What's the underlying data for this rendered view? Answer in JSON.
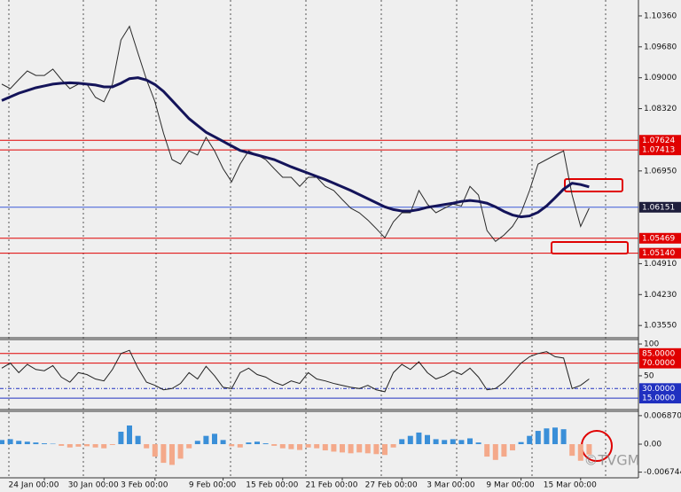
{
  "chart_data": [
    {
      "type": "line",
      "categories": [
        null,
        null,
        null,
        null,
        null,
        "24 Jan 00:00",
        null,
        null,
        null,
        null,
        null,
        null,
        "30 Jan 00:00",
        null,
        null,
        null,
        null,
        null,
        "3 Feb 00:00",
        null,
        null,
        null,
        null,
        null,
        null,
        null,
        "9 Feb 00:00",
        null,
        null,
        null,
        null,
        null,
        null,
        "15 Feb 00:00",
        null,
        null,
        null,
        null,
        null,
        null,
        "21 Feb 00:00",
        null,
        null,
        null,
        null,
        null,
        null,
        "27 Feb 00:00",
        null,
        null,
        null,
        null,
        null,
        null,
        "3 Mar 00:00",
        null,
        null,
        null,
        null,
        null,
        null,
        "9 Mar 00:00",
        null,
        null,
        null,
        null,
        null,
        null,
        "15 Mar 00:00",
        null
      ],
      "series": [
        {
          "color": "#2a2a2a",
          "values": [
            1.0886,
            1.0876,
            1.0896,
            1.0915,
            1.0905,
            1.0905,
            1.0919,
            1.0896,
            1.0876,
            1.0886,
            1.0886,
            1.0857,
            1.0847,
            1.0886,
            1.0983,
            1.1013,
            1.0954,
            1.0896,
            1.0847,
            1.0778,
            1.072,
            1.071,
            1.0739,
            1.073,
            1.0769,
            1.0739,
            1.07,
            1.0671,
            1.071,
            1.0739,
            1.073,
            1.072,
            1.07,
            1.0681,
            1.0681,
            1.0661,
            1.0681,
            1.0681,
            1.0661,
            1.0652,
            1.0632,
            1.0613,
            1.0603,
            1.0587,
            1.0568,
            1.0548,
            1.0583,
            1.0603,
            1.0603,
            1.0652,
            1.0622,
            1.0603,
            1.0613,
            1.0622,
            1.0618,
            1.0661,
            1.0642,
            1.0564,
            1.054,
            1.0554,
            1.0573,
            1.0603,
            1.0652,
            1.071,
            1.072,
            1.073,
            1.0739,
            1.0642,
            1.0573,
            1.0613
          ]
        },
        {
          "color": "#14145a",
          "values": [
            1.085,
            1.0858,
            1.0866,
            1.0872,
            1.0878,
            1.0882,
            1.0886,
            1.0888,
            1.0889,
            1.0888,
            1.0886,
            1.0884,
            1.088,
            1.088,
            1.0888,
            1.0898,
            1.09,
            1.0895,
            1.0885,
            1.087,
            1.085,
            1.083,
            1.081,
            1.0795,
            1.078,
            1.077,
            1.076,
            1.075,
            1.074,
            1.0735,
            1.073,
            1.0725,
            1.072,
            1.0712,
            1.0704,
            1.0697,
            1.069,
            1.0683,
            1.0676,
            1.0668,
            1.066,
            1.0652,
            1.0643,
            1.0634,
            1.0625,
            1.0616,
            1.061,
            1.0607,
            1.0607,
            1.061,
            1.0615,
            1.0618,
            1.0621,
            1.0624,
            1.0628,
            1.063,
            1.0628,
            1.0624,
            1.0616,
            1.0606,
            1.0598,
            1.0594,
            1.0596,
            1.0604,
            1.0618,
            1.0636,
            1.0655,
            1.0668,
            1.0665,
            1.066
          ]
        }
      ],
      "ylim": [
        1.033,
        1.1071
      ],
      "yticks": [
        1.1036,
        1.0968,
        1.09,
        1.0832,
        1.0695,
        1.0491,
        1.0423,
        1.0355
      ],
      "ytick_labels_as_printed": [
        "1.10360",
        "1.09680",
        "1.09000",
        "1.08320",
        "1.06950",
        "1.04910",
        "1.04230",
        "1.03550"
      ],
      "levels": [
        {
          "value": 1.07624,
          "color": "#e00000"
        },
        {
          "value": 1.07413,
          "color": "#e00000"
        },
        {
          "value": 1.06151,
          "color": "#3c5ad8"
        },
        {
          "value": 1.05469,
          "color": "#e00000"
        },
        {
          "value": 1.0514,
          "label": "1.05140",
          "color": "#e00000"
        }
      ],
      "watermark": "©TVGM"
    },
    {
      "type": "line",
      "series": [
        {
          "color": "#222222",
          "values": [
            62,
            70,
            55,
            68,
            60,
            58,
            66,
            48,
            40,
            55,
            52,
            45,
            42,
            60,
            85,
            90,
            62,
            40,
            35,
            28,
            30,
            38,
            55,
            45,
            65,
            50,
            32,
            30,
            55,
            62,
            52,
            48,
            40,
            35,
            42,
            38,
            55,
            45,
            42,
            38,
            35,
            32,
            30,
            35,
            28,
            25,
            55,
            68,
            60,
            72,
            55,
            45,
            50,
            58,
            52,
            62,
            48,
            28,
            30,
            40,
            55,
            70,
            80,
            85,
            88,
            80,
            78,
            30,
            35,
            45
          ]
        }
      ],
      "ylim": [
        -3,
        107
      ],
      "yticks": [
        100,
        50
      ],
      "levels": [
        {
          "value": 85,
          "label": "85.0000",
          "color": "#e00000"
        },
        {
          "value": 70,
          "label": "70.0000",
          "color": "#e00000"
        },
        {
          "value": 30,
          "label": "30.0000",
          "color": "#2030c0"
        },
        {
          "value": 15,
          "label": "15.0000",
          "color": "#2030c0"
        }
      ]
    },
    {
      "type": "bar",
      "color_up": "#3a8fd8",
      "color_down": "#f4a98a",
      "values": [
        0.001,
        0.0012,
        0.0008,
        0.0006,
        0.0004,
        0.0002,
        0.0001,
        -0.0004,
        -0.0008,
        -0.0006,
        -0.0005,
        -0.0008,
        -0.001,
        -0.0002,
        0.003,
        0.0045,
        0.002,
        -0.001,
        -0.003,
        -0.0045,
        -0.005,
        -0.0035,
        -0.001,
        0.0008,
        0.002,
        0.0025,
        0.001,
        -0.0005,
        -0.0008,
        0.0004,
        0.0006,
        0.0002,
        -0.0004,
        -0.001,
        -0.0012,
        -0.0014,
        -0.0008,
        -0.001,
        -0.0015,
        -0.0018,
        -0.002,
        -0.0022,
        -0.002,
        -0.0022,
        -0.0024,
        -0.0026,
        -0.0008,
        0.0012,
        0.002,
        0.0028,
        0.0022,
        0.0012,
        0.001,
        0.0012,
        0.001,
        0.0014,
        0.0004,
        -0.003,
        -0.0038,
        -0.003,
        -0.0015,
        0.0005,
        0.002,
        0.0032,
        0.0038,
        0.004,
        0.0036,
        -0.0028,
        -0.004,
        -0.0025
      ],
      "ylim": [
        -0.0079,
        0.0077
      ],
      "yticks": [
        0.0068709,
        {
          "value": 0,
          "label": "0.00"
        },
        -0.0067446
      ]
    }
  ]
}
